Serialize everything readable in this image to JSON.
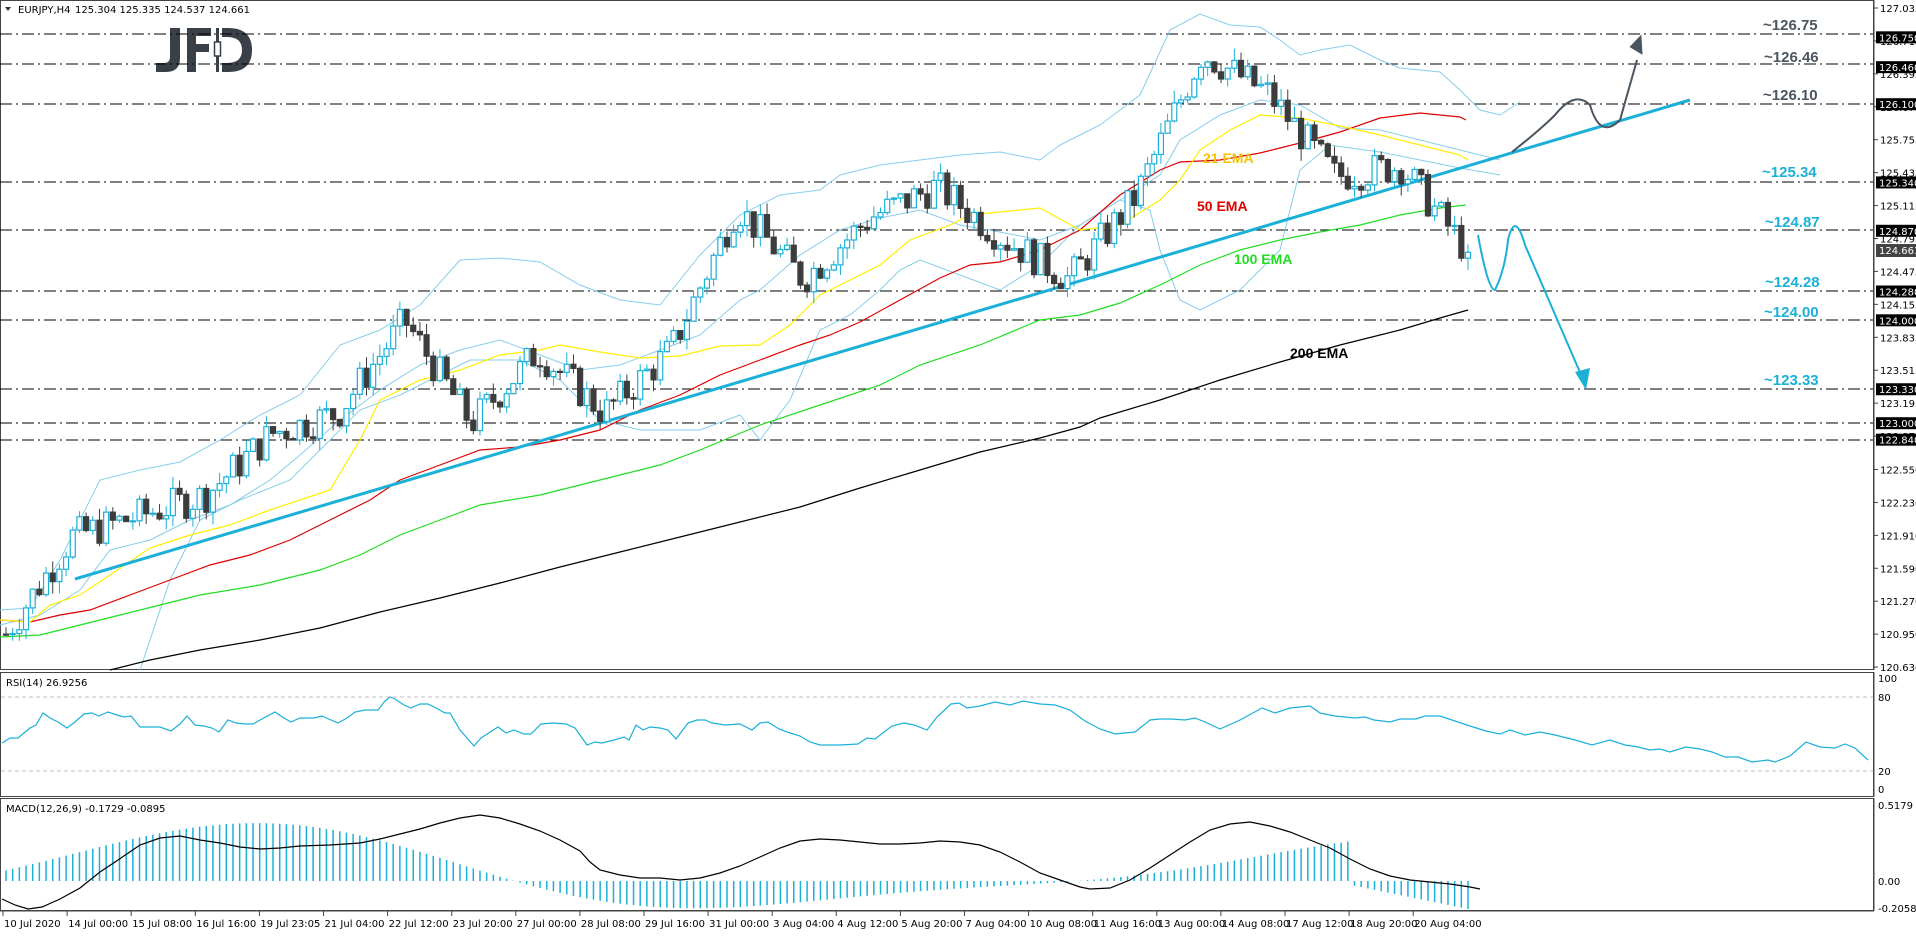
{
  "header": {
    "symbol_label": "EURJPY,H4",
    "ohlc": "125.304 125.335 124.537 124.661",
    "logo": "JFD",
    "collapse_icon": "triangle-down-icon"
  },
  "colors": {
    "bull_candle_outline": "#1ab0d8",
    "bear_candle_fill": "#3c3c3c",
    "ema21": "#ffee00",
    "ema50": "#e00000",
    "ema100": "#22dd22",
    "ema200": "#000000",
    "bollinger": "#87ceeb",
    "trendline": "#1ab0d8",
    "level_dark": "#4a5560",
    "level_cyan": "#1ab0d8",
    "rsi_line": "#1ab0d8",
    "macd_hist": "#1ab0d8",
    "macd_signal": "#000000"
  },
  "price_axis": {
    "ticks": [
      "127.035",
      "126.715",
      "126.395",
      "126.075",
      "125.755",
      "125.435",
      "125.115",
      "124.795",
      "124.475",
      "124.155",
      "123.835",
      "123.515",
      "123.195",
      "122.875",
      "122.550",
      "122.230",
      "121.910",
      "121.590",
      "121.270",
      "120.950",
      "120.630"
    ],
    "tags": [
      "126.750",
      "126.460",
      "126.100",
      "125.340",
      "124.870",
      "124.280",
      "124.000",
      "123.330",
      "123.000",
      "122.840"
    ],
    "current_price": "124.661"
  },
  "levels": [
    {
      "label": "~126.75",
      "value": 126.75,
      "color": "dark"
    },
    {
      "label": "~126.46",
      "value": 126.46,
      "color": "dark"
    },
    {
      "label": "~126.10",
      "value": 126.1,
      "color": "dark"
    },
    {
      "label": "~125.34",
      "value": 125.34,
      "color": "cyan"
    },
    {
      "label": "~124.87",
      "value": 124.87,
      "color": "cyan"
    },
    {
      "label": "~124.28",
      "value": 124.28,
      "color": "cyan"
    },
    {
      "label": "~124.00",
      "value": 124.0,
      "color": "cyan"
    },
    {
      "label": "~123.33",
      "value": 123.33,
      "color": "cyan"
    }
  ],
  "ema_labels": {
    "ema21": "21 EMA",
    "ema50": "50 EMA",
    "ema100": "100 EMA",
    "ema200": "200 EMA"
  },
  "rsi": {
    "label": "RSI(14) 26.9256",
    "axis": [
      "100",
      "80",
      "20",
      "0"
    ]
  },
  "macd": {
    "label": "MACD(12,26,9) -0.1729 -0.0895",
    "axis": [
      "0.5179",
      "0.00",
      "-0.2058"
    ]
  },
  "time_axis": [
    "10 Jul 2020",
    "14 Jul 00:00",
    "15 Jul 08:00",
    "16 Jul 16:00",
    "19 Jul 23:05",
    "21 Jul 04:00",
    "22 Jul 12:00",
    "23 Jul 20:00",
    "27 Jul 00:00",
    "28 Jul 08:00",
    "29 Jul 16:00",
    "31 Jul 00:00",
    "3 Aug 04:00",
    "4 Aug 12:00",
    "5 Aug 20:00",
    "7 Aug 04:00",
    "10 Aug 08:00",
    "11 Aug 16:00",
    "13 Aug 00:00",
    "14 Aug 08:00",
    "17 Aug 12:00",
    "18 Aug 20:00",
    "20 Aug 04:00"
  ],
  "chart_data": {
    "type": "line",
    "title": "EURJPY,H4",
    "subtitle": "125.304 125.335 124.537 124.661",
    "xlabel": "",
    "ylabel": "",
    "ylim": [
      120.63,
      127.035
    ],
    "grid": false,
    "legend_position": "inline",
    "x": [
      "10 Jul 2020",
      "14 Jul 00:00",
      "15 Jul 08:00",
      "16 Jul 16:00",
      "19 Jul 23:05",
      "21 Jul 04:00",
      "22 Jul 12:00",
      "23 Jul 20:00",
      "27 Jul 00:00",
      "28 Jul 08:00",
      "29 Jul 16:00",
      "31 Jul 00:00",
      "3 Aug 04:00",
      "4 Aug 12:00",
      "5 Aug 20:00",
      "7 Aug 04:00",
      "10 Aug 08:00",
      "11 Aug 16:00",
      "13 Aug 00:00",
      "14 Aug 08:00",
      "17 Aug 12:00",
      "18 Aug 20:00",
      "20 Aug 04:00"
    ],
    "series": [
      {
        "name": "Close (approx)",
        "values": [
          120.95,
          121.9,
          122.1,
          122.3,
          122.9,
          123.1,
          124.0,
          123.0,
          123.7,
          123.1,
          123.7,
          125.1,
          124.4,
          125.0,
          125.3,
          124.8,
          124.4,
          125.2,
          126.6,
          126.2,
          125.4,
          125.5,
          124.66
        ]
      },
      {
        "name": "21 EMA",
        "values": [
          121.0,
          121.6,
          121.9,
          122.1,
          122.5,
          122.9,
          123.5,
          123.5,
          123.6,
          123.5,
          123.6,
          124.3,
          124.5,
          124.7,
          125.0,
          124.9,
          124.7,
          124.9,
          125.6,
          126.0,
          125.7,
          125.6,
          125.4
        ]
      },
      {
        "name": "50 EMA",
        "values": [
          121.05,
          121.2,
          121.5,
          121.8,
          122.1,
          122.5,
          123.0,
          123.3,
          123.4,
          123.5,
          123.6,
          123.9,
          124.1,
          124.4,
          124.6,
          124.8,
          124.8,
          124.9,
          125.2,
          125.5,
          125.6,
          125.6,
          125.5
        ]
      },
      {
        "name": "100 EMA",
        "values": [
          120.95,
          121.1,
          121.3,
          121.5,
          121.8,
          122.1,
          122.5,
          122.8,
          123.0,
          123.1,
          123.3,
          123.5,
          123.7,
          123.9,
          124.1,
          124.3,
          124.4,
          124.5,
          124.7,
          124.9,
          125.0,
          125.1,
          125.1
        ]
      },
      {
        "name": "200 EMA",
        "values": [
          120.6,
          120.7,
          120.8,
          120.9,
          121.05,
          121.2,
          121.4,
          121.55,
          121.7,
          121.85,
          122.0,
          122.2,
          122.4,
          122.6,
          122.8,
          122.95,
          123.1,
          123.25,
          123.45,
          123.65,
          123.85,
          123.95,
          124.07
        ]
      }
    ],
    "annotations": [
      {
        "text": "~126.75",
        "y": 126.75
      },
      {
        "text": "~126.46",
        "y": 126.46
      },
      {
        "text": "~126.10",
        "y": 126.1
      },
      {
        "text": "~125.34",
        "y": 125.34
      },
      {
        "text": "~124.87",
        "y": 124.87
      },
      {
        "text": "~124.28",
        "y": 124.28
      },
      {
        "text": "~124.00",
        "y": 124.0
      },
      {
        "text": "~123.33",
        "y": 123.33
      },
      {
        "text": "Uptrend support line from 14 Jul to 20 Aug",
        "from": 121.5,
        "to": 126.1
      },
      {
        "text": "Bullish scenario arrow to ~126.75"
      },
      {
        "text": "Bearish scenario arrow to ~123.33"
      }
    ],
    "indicators": {
      "rsi": {
        "name": "RSI(14)",
        "last": 26.9256,
        "ylim": [
          0,
          100
        ],
        "levels": [
          20,
          80
        ]
      },
      "macd": {
        "name": "MACD(12,26,9)",
        "main": -0.1729,
        "signal": -0.0895,
        "ylim": [
          -0.2058,
          0.5179
        ]
      }
    }
  }
}
